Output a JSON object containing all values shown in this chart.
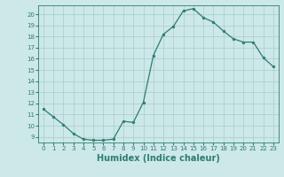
{
  "x": [
    0,
    1,
    2,
    3,
    4,
    5,
    6,
    7,
    8,
    9,
    10,
    11,
    12,
    13,
    14,
    15,
    16,
    17,
    18,
    19,
    20,
    21,
    22,
    23
  ],
  "y": [
    11.5,
    10.8,
    10.1,
    9.3,
    8.8,
    8.7,
    8.7,
    8.8,
    10.4,
    10.3,
    12.1,
    16.3,
    18.2,
    18.9,
    20.3,
    20.5,
    19.7,
    19.3,
    18.5,
    17.8,
    17.5,
    17.5,
    16.1,
    15.3
  ],
  "xlabel": "Humidex (Indice chaleur)",
  "xlim": [
    -0.5,
    23.5
  ],
  "ylim": [
    8.5,
    20.8
  ],
  "yticks": [
    9,
    10,
    11,
    12,
    13,
    14,
    15,
    16,
    17,
    18,
    19,
    20
  ],
  "xticks": [
    0,
    1,
    2,
    3,
    4,
    5,
    6,
    7,
    8,
    9,
    10,
    11,
    12,
    13,
    14,
    15,
    16,
    17,
    18,
    19,
    20,
    21,
    22,
    23
  ],
  "line_color": "#2e7d6e",
  "marker_color": "#2e7d6e",
  "bg_color": "#cce8e8",
  "grid_color": "#aacccc",
  "tick_label_color": "#2e7d6e",
  "xlabel_color": "#2e7d6e",
  "xlabel_fontsize": 7.0,
  "tick_fontsize": 5.0
}
